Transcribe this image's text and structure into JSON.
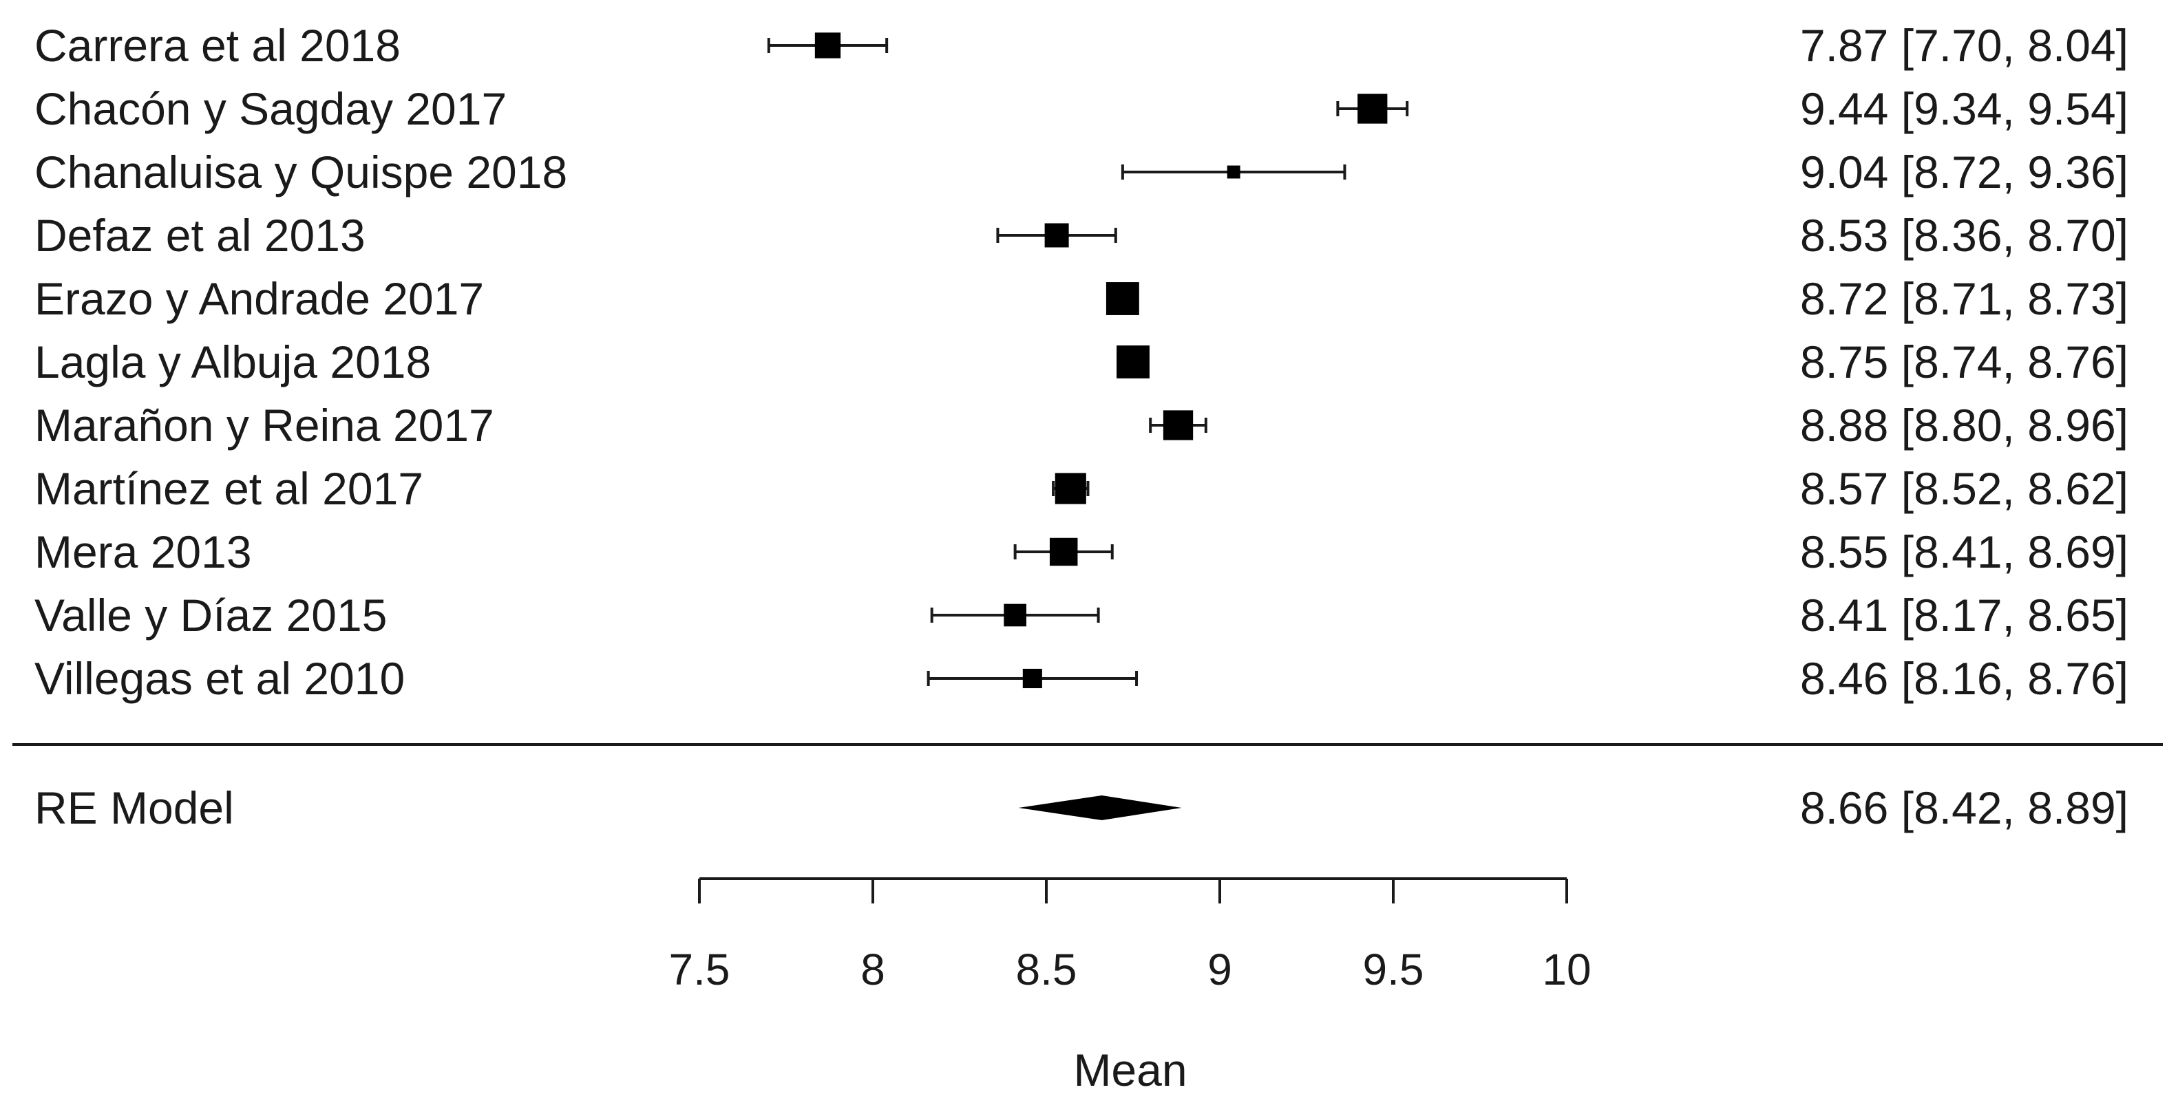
{
  "chart_data": {
    "type": "forest",
    "xlabel": "Mean",
    "xlim": [
      7.5,
      10
    ],
    "xticks": [
      7.5,
      8,
      8.5,
      9,
      9.5,
      10
    ],
    "xtick_labels": [
      "7.5",
      "8",
      "8.5",
      "9",
      "9.5",
      "10"
    ],
    "studies": [
      {
        "label": "Carrera et al 2018",
        "mean": 7.87,
        "lower": 7.7,
        "upper": 8.04,
        "text": "7.87 [7.70, 8.04]",
        "weight": 0.55
      },
      {
        "label": "Chacón y Sagday 2017",
        "mean": 9.44,
        "lower": 9.34,
        "upper": 9.54,
        "text": "9.44 [9.34, 9.54]",
        "weight": 0.68
      },
      {
        "label": "Chanaluisa y Quispe 2018",
        "mean": 9.04,
        "lower": 8.72,
        "upper": 9.36,
        "text": "9.04 [8.72, 9.36]",
        "weight": 0.15
      },
      {
        "label": "Defaz et al 2013",
        "mean": 8.53,
        "lower": 8.36,
        "upper": 8.7,
        "text": "8.53 [8.36, 8.70]",
        "weight": 0.5
      },
      {
        "label": "Erazo y Andrade 2017",
        "mean": 8.72,
        "lower": 8.71,
        "upper": 8.73,
        "text": "8.72 [8.71, 8.73]",
        "weight": 0.78
      },
      {
        "label": "Lagla y Albuja 2018",
        "mean": 8.75,
        "lower": 8.74,
        "upper": 8.76,
        "text": "8.75 [8.74, 8.76]",
        "weight": 0.78
      },
      {
        "label": "Marañon y Reina 2017",
        "mean": 8.88,
        "lower": 8.8,
        "upper": 8.96,
        "text": "8.88 [8.80, 8.96]",
        "weight": 0.68
      },
      {
        "label": "Martínez et al 2017",
        "mean": 8.57,
        "lower": 8.52,
        "upper": 8.62,
        "text": "8.57 [8.52, 8.62]",
        "weight": 0.72
      },
      {
        "label": "Mera 2013",
        "mean": 8.55,
        "lower": 8.41,
        "upper": 8.69,
        "text": "8.55 [8.41, 8.69]",
        "weight": 0.62
      },
      {
        "label": "Valle y Díaz 2015",
        "mean": 8.41,
        "lower": 8.17,
        "upper": 8.65,
        "text": "8.41 [8.17, 8.65]",
        "weight": 0.45
      },
      {
        "label": "Villegas et al 2010",
        "mean": 8.46,
        "lower": 8.16,
        "upper": 8.76,
        "text": "8.46 [8.16, 8.76]",
        "weight": 0.35
      }
    ],
    "summary": {
      "label": "RE Model",
      "mean": 8.66,
      "lower": 8.42,
      "upper": 8.89,
      "text": "8.66 [8.42, 8.89]"
    }
  }
}
